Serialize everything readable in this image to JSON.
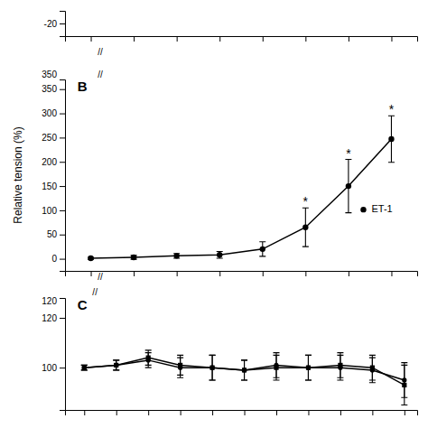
{
  "chart_data": [
    {
      "type": "line",
      "xlim": [
        -9.3,
        -5.2
      ],
      "xticks": [
        -9,
        -8.5,
        -8,
        -7.5,
        -7,
        -6.5,
        -6,
        -5.5
      ],
      "ylim": [
        -22,
        -18
      ],
      "yticks": [
        -20
      ],
      "tick_labels": "y",
      "grid": false,
      "annotations": [
        "//"
      ]
    },
    {
      "type": "line",
      "title": "B",
      "ylabel": "Relative tension (%)",
      "x": [
        -9,
        -8.5,
        -8,
        -7.5,
        -7,
        -6.5,
        -6,
        -5.5
      ],
      "series": [
        {
          "name": "ET-1",
          "color": "#000000",
          "marker": "circle",
          "line_style": "solid",
          "values": [
            1,
            3,
            6,
            8,
            20,
            65,
            150,
            247
          ],
          "error": [
            2,
            4,
            5,
            7,
            15,
            40,
            55,
            48
          ],
          "significant": [
            false,
            false,
            false,
            false,
            false,
            true,
            true,
            true
          ]
        }
      ],
      "significance_text": "*",
      "xlim": [
        -9.3,
        -5.2
      ],
      "xticks": [
        -9,
        -8.5,
        -8,
        -7.5,
        -7,
        -6.5,
        -6,
        -5.5
      ],
      "ylim": [
        -25,
        370
      ],
      "yticks": [
        0,
        50,
        100,
        150,
        200,
        250,
        300,
        350
      ],
      "tick_labels": "y",
      "grid": false,
      "legend": "right",
      "annotations": [
        "//",
        "//",
        "350"
      ]
    },
    {
      "type": "line",
      "title": "C",
      "x": [
        -9,
        -8.5,
        -8,
        -7.5,
        -7,
        -6.5,
        -6,
        -5.5,
        -5,
        -4.5,
        -4
      ],
      "series": [
        {
          "color": "#000000",
          "marker": "circle",
          "line_style": "solid",
          "values": [
            100,
            101,
            103,
            100,
            100,
            99,
            101,
            100,
            100,
            99,
            95
          ],
          "error": [
            1,
            2,
            3,
            4,
            5,
            4,
            5,
            5,
            5,
            5,
            7
          ]
        },
        {
          "color": "#000000",
          "marker": "square",
          "line_style": "solid",
          "values": [
            100,
            101,
            104,
            101,
            100,
            99,
            100,
            100,
            101,
            100,
            93
          ],
          "error": [
            1,
            2,
            3,
            4,
            5,
            4,
            5,
            5,
            5,
            5,
            8
          ]
        }
      ],
      "xlim": [
        -9.3,
        -3.8
      ],
      "xticks": [
        -9,
        -8.5,
        -8,
        -7.5,
        -7,
        -6.5,
        -6,
        -5.5,
        -5,
        -4.5,
        -4
      ],
      "ylim": [
        83,
        128
      ],
      "yticks": [
        100,
        120
      ],
      "tick_labels": "y",
      "grid": false,
      "annotations": [
        "//",
        "120"
      ]
    }
  ]
}
